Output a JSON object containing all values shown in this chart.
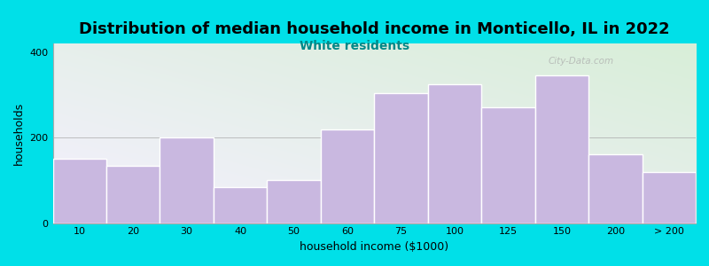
{
  "title": "Distribution of median household income in Monticello, IL in 2022",
  "subtitle": "White residents",
  "xlabel": "household income ($1000)",
  "ylabel": "households",
  "bar_labels": [
    "10",
    "20",
    "30",
    "40",
    "50",
    "60",
    "75",
    "100",
    "125",
    "150",
    "200",
    "> 200"
  ],
  "bar_heights": [
    150,
    135,
    200,
    85,
    100,
    220,
    305,
    325,
    270,
    345,
    160,
    120
  ],
  "bar_color": "#c9b8e0",
  "bar_edge_color": "#ffffff",
  "ylim": [
    0,
    420
  ],
  "yticks": [
    0,
    200,
    400
  ],
  "bg_outer": "#00e0e8",
  "bg_plot_tl": "#d8eed8",
  "bg_plot_br": "#f5f0ff",
  "title_fontsize": 13,
  "subtitle_fontsize": 10,
  "subtitle_color": "#008888",
  "axis_label_fontsize": 9,
  "tick_fontsize": 8,
  "watermark": "City-Data.com"
}
